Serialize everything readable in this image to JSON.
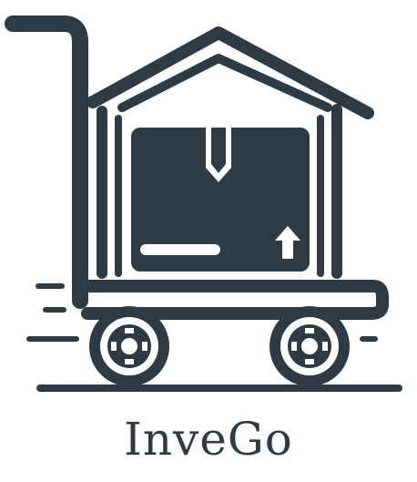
{
  "brand": {
    "name": "InveGo",
    "ink_color": "#2f3b44",
    "background_color": "#ffffff"
  },
  "logo": {
    "icon_name": "hand-truck-house-box-icon",
    "elements": [
      "cart-handle",
      "house-roof",
      "package-box",
      "up-arrow-icon",
      "cart-wheel",
      "motion-lines"
    ]
  }
}
